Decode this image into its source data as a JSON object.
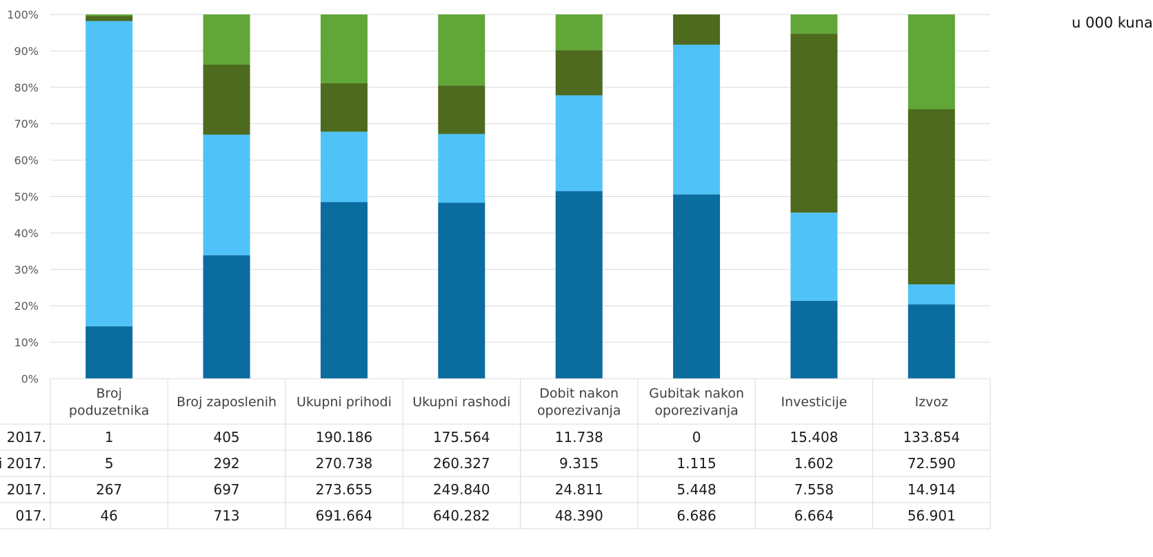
{
  "unit_label": "u 000 kuna",
  "chart_data": {
    "type": "bar",
    "stacked": "percent",
    "y_ticks": [
      "0%",
      "10%",
      "20%",
      "30%",
      "40%",
      "50%",
      "60%",
      "70%",
      "80%",
      "90%",
      "100%"
    ],
    "ylim": [
      0,
      100
    ],
    "grid": true,
    "categories": [
      [
        "Broj",
        "poduzetnika"
      ],
      [
        "Broj zaposlenih"
      ],
      [
        "Ukupni prihodi"
      ],
      [
        "Ukupni rashodi"
      ],
      [
        "Dobit nakon",
        "oporezivanja"
      ],
      [
        "Gubitak nakon",
        "oporezivanja"
      ],
      [
        "Investicije"
      ],
      [
        "Izvoz"
      ]
    ],
    "series": [
      {
        "name": "2017.",
        "color": "#0A6C9F",
        "values": [
          "1",
          "405",
          "190.186",
          "175.564",
          "11.738",
          "0",
          "15.408",
          "133.854"
        ],
        "numeric": [
          1,
          405,
          190186,
          175564,
          11738,
          0,
          15408,
          133854
        ]
      },
      {
        "name": "i 2017.",
        "color": "#4FC3F7",
        "values": [
          "5",
          "292",
          "270.738",
          "260.327",
          "9.315",
          "1.115",
          "1.602",
          "72.590"
        ],
        "numeric": [
          5,
          292,
          270738,
          260327,
          9315,
          1115,
          1602,
          72590
        ]
      },
      {
        "name": "2017.",
        "color": "#61A638",
        "values": [
          "267",
          "697",
          "273.655",
          "249.840",
          "24.811",
          "5.448",
          "7.558",
          "14.914"
        ],
        "numeric": [
          267,
          697,
          273655,
          249840,
          24811,
          5448,
          7558,
          14914
        ]
      },
      {
        "name": "017.",
        "color": "#4D6A1E",
        "values": [
          "46",
          "713",
          "691.664",
          "640.282",
          "48.390",
          "6.686",
          "6.664",
          "56.901"
        ],
        "numeric": [
          46,
          713,
          691664,
          640282,
          48390,
          6686,
          6664,
          56901
        ]
      }
    ],
    "bar_percents": [
      [
        14.4,
        83.8,
        0.4,
        1.4
      ],
      [
        33.9,
        33.1,
        13.8,
        19.2
      ],
      [
        48.5,
        19.3,
        18.9,
        13.3
      ],
      [
        48.3,
        18.9,
        19.5,
        13.3
      ],
      [
        51.5,
        26.3,
        9.8,
        12.4
      ],
      [
        50.6,
        41.1,
        0.0,
        8.3
      ],
      [
        21.4,
        24.2,
        5.3,
        49.1
      ],
      [
        20.4,
        5.5,
        26.0,
        48.1
      ]
    ],
    "stack_order": [
      0,
      1,
      3,
      2
    ]
  }
}
